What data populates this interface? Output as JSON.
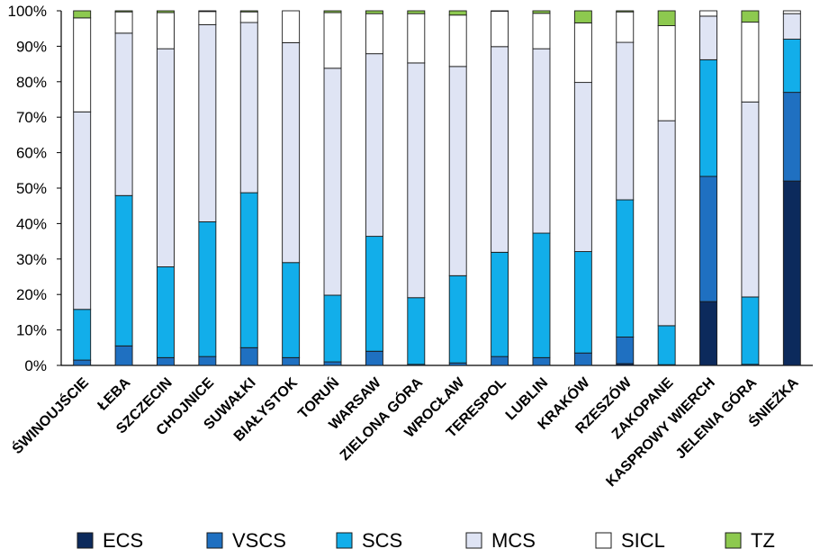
{
  "chart_data": {
    "type": "bar",
    "stacked": true,
    "percent": true,
    "ylim": [
      0,
      100
    ],
    "y_ticks": [
      "0%",
      "10%",
      "20%",
      "30%",
      "40%",
      "50%",
      "60%",
      "70%",
      "80%",
      "90%",
      "100%"
    ],
    "categories": [
      "ŚWINOUJŚCIE",
      "ŁEBA",
      "SZCZECIN",
      "CHOJNICE",
      "SUWAŁKI",
      "BIAŁYSTOK",
      "TORUŃ",
      "WARSAW",
      "ZIELONA GÓRA",
      "WROCŁAW",
      "TERESPOL",
      "LUBLIN",
      "KRAKÓW",
      "RZESZÓW",
      "ZAKOPANE",
      "KASPROWY WIERCH",
      "JELENIA GÓRA",
      "ŚNIEŻKA"
    ],
    "series": [
      {
        "name": "ECS",
        "color": "#0c2a5c",
        "values": [
          0.0,
          0.0,
          0.0,
          0.0,
          0.0,
          0.0,
          0.0,
          0.0,
          0.0,
          0.0,
          0.0,
          0.0,
          0.0,
          0.5,
          0.0,
          18.0,
          0.0,
          52.0
        ]
      },
      {
        "name": "VSCS",
        "color": "#1f70c1",
        "values": [
          1.5,
          5.5,
          2.2,
          2.5,
          5.0,
          2.2,
          1.0,
          4.0,
          0.3,
          0.7,
          2.5,
          2.2,
          3.5,
          7.5,
          0.2,
          35.3,
          0.3,
          25.0
        ]
      },
      {
        "name": "SCS",
        "color": "#12aeea",
        "values": [
          14.3,
          42.4,
          25.6,
          38.0,
          43.7,
          26.8,
          18.8,
          32.4,
          18.8,
          24.6,
          29.4,
          35.1,
          28.6,
          38.7,
          11.0,
          32.9,
          19.0,
          15.0
        ]
      },
      {
        "name": "MCS",
        "color": "#dfe4f4",
        "values": [
          55.7,
          45.8,
          61.5,
          55.6,
          48.0,
          62.0,
          64.0,
          51.5,
          66.2,
          59.0,
          58.0,
          52.0,
          47.7,
          44.4,
          57.8,
          12.3,
          55.0,
          7.2
        ]
      },
      {
        "name": "SICL",
        "color": "#ffffff",
        "values": [
          26.5,
          6.0,
          10.2,
          3.7,
          3.0,
          9.0,
          15.7,
          11.3,
          13.9,
          14.5,
          10.0,
          10.0,
          16.8,
          8.6,
          26.8,
          1.5,
          22.5,
          0.8
        ]
      },
      {
        "name": "TZ",
        "color": "#8dc94f",
        "values": [
          2.0,
          0.3,
          0.5,
          0.2,
          0.3,
          0.0,
          0.5,
          0.8,
          0.8,
          1.2,
          0.1,
          0.7,
          3.4,
          0.3,
          4.2,
          0.0,
          3.2,
          0.0
        ]
      }
    ],
    "legend_position": "bottom",
    "grid": false
  }
}
